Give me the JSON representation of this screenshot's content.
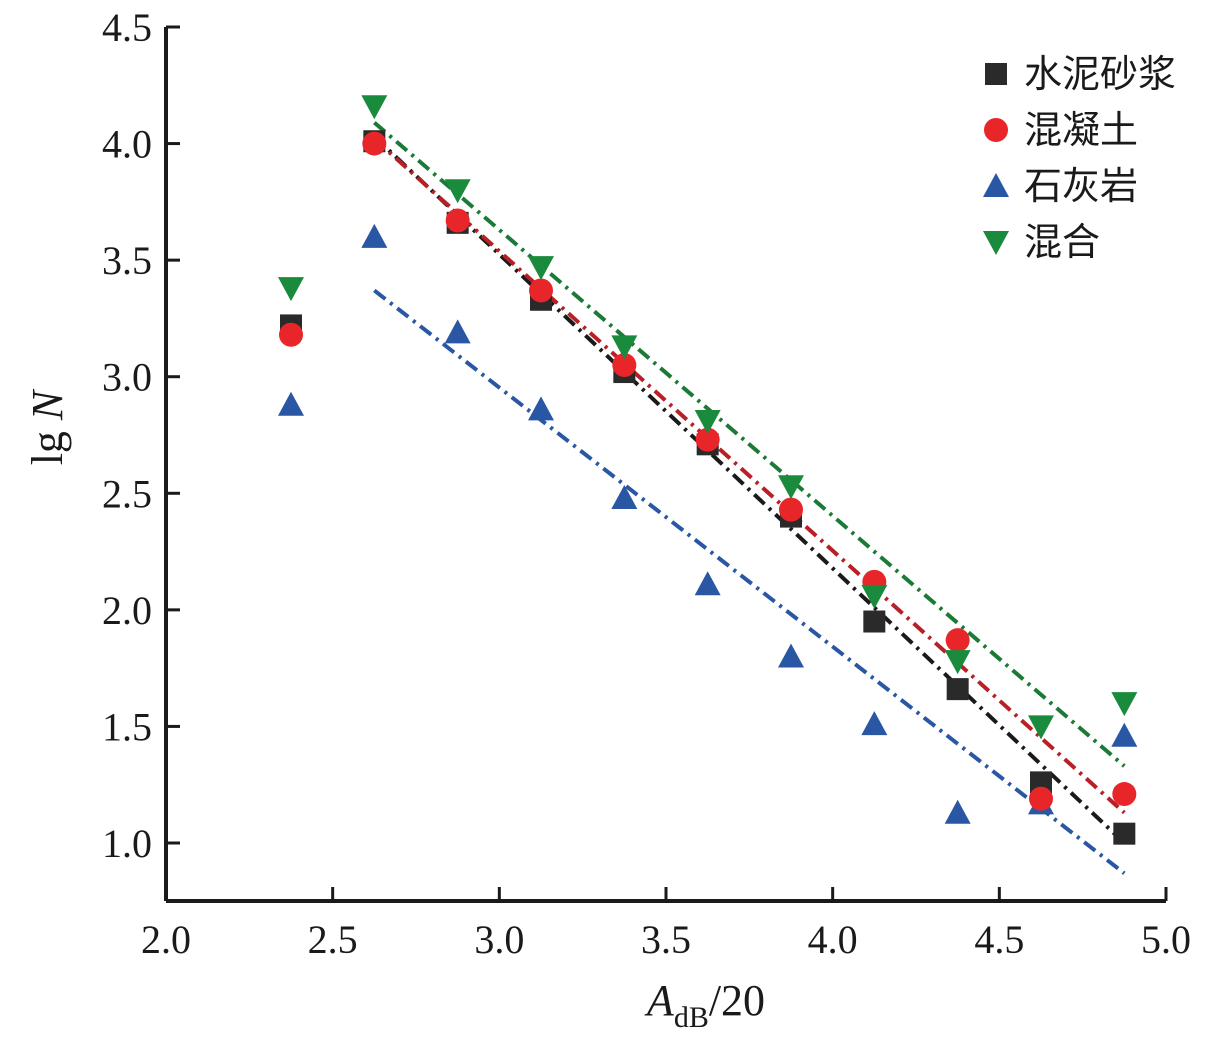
{
  "chart_data": {
    "type": "scatter",
    "xlabel_main": "A",
    "xlabel_sub": "dB",
    "xlabel_rest": "/20",
    "ylabel_main": "lg ",
    "ylabel_var": "N",
    "xlim": [
      2.0,
      5.0
    ],
    "ylim": [
      0.75,
      4.5
    ],
    "x_ticks": [
      "2.0",
      "2.5",
      "3.0",
      "3.5",
      "4.0",
      "4.5",
      "5.0"
    ],
    "y_ticks": [
      "1.0",
      "1.5",
      "2.0",
      "2.5",
      "3.0",
      "3.5",
      "4.0",
      "4.5"
    ],
    "grid": false,
    "legend_position": "top-right",
    "x": [
      2.375,
      2.625,
      2.875,
      3.125,
      3.375,
      3.625,
      3.875,
      4.125,
      4.375,
      4.625,
      4.875
    ],
    "series": [
      {
        "name": "水泥砂浆",
        "marker": "square",
        "color": "#2a2a2a",
        "fit_color": "#1a1a1a",
        "values": [
          3.22,
          4.01,
          3.66,
          3.33,
          3.02,
          2.71,
          2.4,
          1.95,
          1.66,
          1.26,
          1.04
        ],
        "fit": {
          "x": [
            2.625,
            4.875
          ],
          "y": [
            4.03,
            1.0
          ]
        }
      },
      {
        "name": "混凝土",
        "marker": "circle",
        "color": "#e8262a",
        "fit_color": "#b82025",
        "values": [
          3.18,
          4.0,
          3.67,
          3.37,
          3.05,
          2.73,
          2.43,
          2.12,
          1.87,
          1.19,
          1.21
        ],
        "fit": {
          "x": [
            2.625,
            4.875
          ],
          "y": [
            4.02,
            1.13
          ]
        }
      },
      {
        "name": "石灰岩",
        "marker": "triangle-up",
        "color": "#2a57a4",
        "fit_color": "#2a57a4",
        "values": [
          2.88,
          3.6,
          3.19,
          2.86,
          2.48,
          2.11,
          1.8,
          1.51,
          1.13,
          1.17,
          1.46
        ],
        "fit": {
          "x": [
            2.625,
            4.875
          ],
          "y": [
            3.37,
            0.87
          ]
        }
      },
      {
        "name": "混合",
        "marker": "triangle-down",
        "color": "#1a8a3c",
        "fit_color": "#1a7a36",
        "values": [
          3.38,
          4.16,
          3.8,
          3.47,
          3.13,
          2.81,
          2.53,
          2.06,
          1.78,
          1.5,
          1.6
        ],
        "fit": {
          "x": [
            2.625,
            4.875
          ],
          "y": [
            4.09,
            1.33
          ]
        }
      }
    ]
  }
}
